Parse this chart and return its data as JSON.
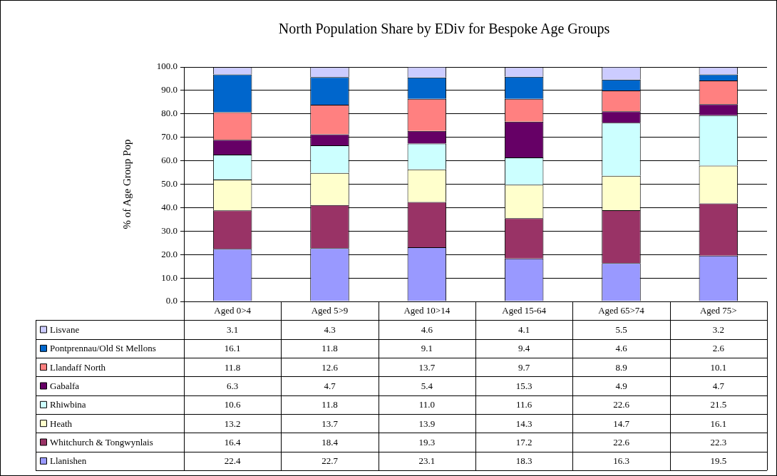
{
  "chart_data": {
    "type": "bar",
    "title": "North Population Share by EDiv for Bespoke Age Groups",
    "ylabel": "% of Age Group Pop",
    "categories": [
      "Aged 0>4",
      "Aged 5>9",
      "Aged 10>14",
      "Aged 15-64",
      "Aged 65>74",
      "Aged 75>"
    ],
    "stacked": true,
    "ylim": [
      0,
      100
    ],
    "yticks": [
      {
        "value": 0,
        "label": "0.0"
      },
      {
        "value": 10,
        "label": "10.0"
      },
      {
        "value": 20,
        "label": "20.0"
      },
      {
        "value": 30,
        "label": "30.0"
      },
      {
        "value": 40,
        "label": "40.0"
      },
      {
        "value": 50,
        "label": "50.0"
      },
      {
        "value": 60,
        "label": "60.0"
      },
      {
        "value": 70,
        "label": "70.0"
      },
      {
        "value": 80,
        "label": "80.0"
      },
      {
        "value": 90,
        "label": "90.0"
      },
      {
        "value": 100,
        "label": "100.0"
      }
    ],
    "grid": "y",
    "legend": "bottom",
    "series": [
      {
        "name": "Llanishen",
        "color": "#9999ff",
        "values": [
          22.4,
          22.7,
          23.1,
          18.3,
          16.3,
          19.5
        ],
        "value_labels": [
          "22.4",
          "22.7",
          "23.1",
          "18.3",
          "16.3",
          "19.5"
        ]
      },
      {
        "name": "Whitchurch & Tongwynlais",
        "color": "#993366",
        "values": [
          16.4,
          18.4,
          19.3,
          17.2,
          22.6,
          22.3
        ],
        "value_labels": [
          "16.4",
          "18.4",
          "19.3",
          "17.2",
          "22.6",
          "22.3"
        ]
      },
      {
        "name": "Heath",
        "color": "#ffffcc",
        "values": [
          13.2,
          13.7,
          13.9,
          14.3,
          14.7,
          16.1
        ],
        "value_labels": [
          "13.2",
          "13.7",
          "13.9",
          "14.3",
          "14.7",
          "16.1"
        ]
      },
      {
        "name": "Rhiwbina",
        "color": "#ccffff",
        "values": [
          10.6,
          11.8,
          11.0,
          11.6,
          22.6,
          21.5
        ],
        "value_labels": [
          "10.6",
          "11.8",
          "11.0",
          "11.6",
          "22.6",
          "21.5"
        ]
      },
      {
        "name": "Gabalfa",
        "color": "#660066",
        "values": [
          6.3,
          4.7,
          5.4,
          15.3,
          4.9,
          4.7
        ],
        "value_labels": [
          "6.3",
          "4.7",
          "5.4",
          "15.3",
          "4.9",
          "4.7"
        ]
      },
      {
        "name": "Llandaff North",
        "color": "#ff8080",
        "values": [
          11.8,
          12.6,
          13.7,
          9.7,
          8.9,
          10.1
        ],
        "value_labels": [
          "11.8",
          "12.6",
          "13.7",
          "9.7",
          "8.9",
          "10.1"
        ]
      },
      {
        "name": "Pontprennau/Old St Mellons",
        "color": "#0066cc",
        "values": [
          16.1,
          11.8,
          9.1,
          9.4,
          4.6,
          2.6
        ],
        "value_labels": [
          "16.1",
          "11.8",
          "9.1",
          "9.4",
          "4.6",
          "2.6"
        ]
      },
      {
        "name": "Lisvane",
        "color": "#ccccff",
        "values": [
          3.1,
          4.3,
          4.6,
          4.1,
          5.5,
          3.2
        ],
        "value_labels": [
          "3.1",
          "4.3",
          "4.6",
          "4.1",
          "5.5",
          "3.2"
        ]
      }
    ]
  }
}
